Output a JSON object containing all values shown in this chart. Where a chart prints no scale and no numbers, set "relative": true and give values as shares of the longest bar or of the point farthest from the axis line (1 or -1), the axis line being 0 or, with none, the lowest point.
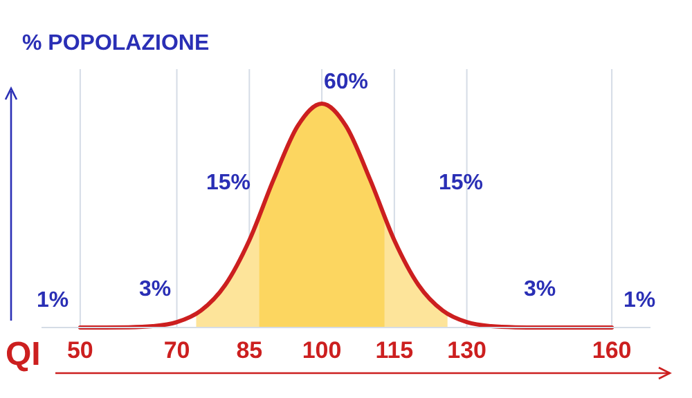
{
  "chart_data": {
    "type": "area",
    "relative": true,
    "xlabel": "QI",
    "ylabel": "% POPOLAZIONE",
    "xlim": [
      42,
      168
    ],
    "xticks": [
      50,
      70,
      85,
      100,
      115,
      130,
      160
    ],
    "grid": "x",
    "series": [
      {
        "color": "#fde49a",
        "x": [
          74,
          77,
          80,
          83,
          87
        ],
        "values": [
          0.061,
          0.112,
          0.19,
          0.3,
          0.5
        ]
      },
      {
        "color": "#fcd660",
        "x": [
          87,
          90,
          95,
          100,
          105,
          110,
          113
        ],
        "values": [
          0.5,
          0.66,
          0.9,
          1,
          0.9,
          0.66,
          0.5
        ]
      },
      {
        "color": "#fde49a",
        "x": [
          113,
          117,
          120,
          123,
          126
        ],
        "values": [
          0.5,
          0.3,
          0.19,
          0.112,
          0.061
        ]
      },
      {
        "type": "line",
        "color": "#cc1f1f",
        "x": [
          50,
          55,
          60,
          65,
          70,
          75,
          80,
          85,
          90,
          95,
          100,
          105,
          110,
          115,
          120,
          125,
          130,
          135,
          140,
          145,
          150,
          155,
          160
        ],
        "values": [
          0,
          0,
          0.001,
          0.006,
          0.024,
          0.076,
          0.19,
          0.39,
          0.66,
          0.9,
          1,
          0.9,
          0.66,
          0.39,
          0.19,
          0.076,
          0.024,
          0.006,
          0.001,
          0,
          0,
          0,
          0
        ]
      }
    ],
    "annotations": [
      "1%",
      "3%",
      "15%",
      "60%",
      "15%",
      "3%",
      "1%"
    ]
  }
}
